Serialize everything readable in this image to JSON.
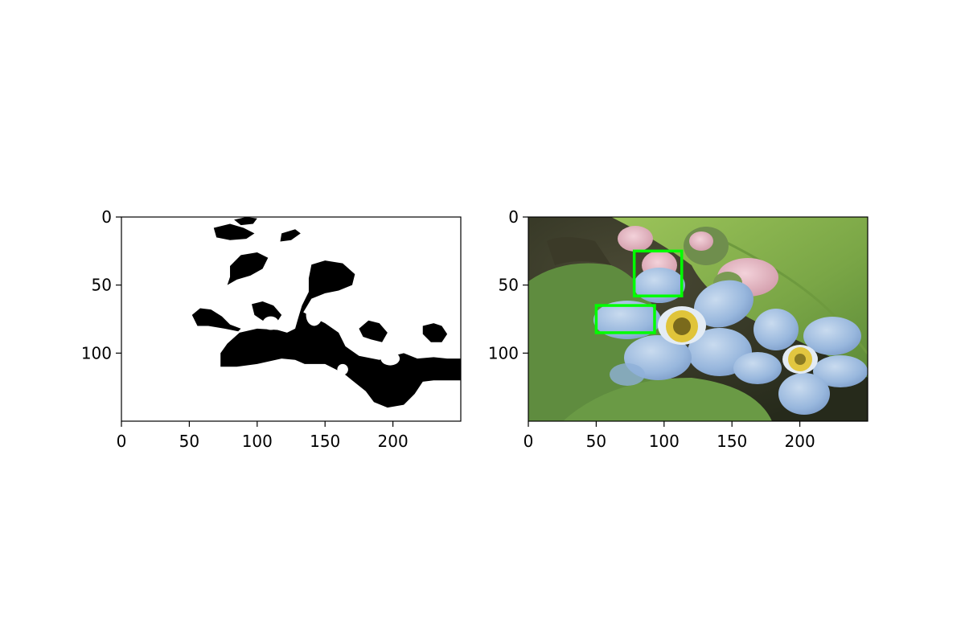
{
  "chart_data": [
    {
      "type": "heatmap",
      "panel": "binary-mask",
      "title": "",
      "xlabel": "",
      "ylabel": "",
      "image_width": 250,
      "image_height": 150,
      "xlim": [
        0,
        250
      ],
      "ylim": [
        150,
        0
      ],
      "xticks": [
        0,
        50,
        100,
        150,
        200
      ],
      "yticks": [
        0,
        50,
        100
      ],
      "colors": {
        "foreground": "#000000",
        "background": "#ffffff"
      },
      "grid": false,
      "legend": "none",
      "regions": [
        {
          "name": "blob-top-left",
          "points": [
            [
              68,
              8
            ],
            [
              80,
              5
            ],
            [
              90,
              8
            ],
            [
              98,
              12
            ],
            [
              92,
              16
            ],
            [
              80,
              17
            ],
            [
              70,
              15
            ]
          ]
        },
        {
          "name": "blob-top-small",
          "points": [
            [
              83,
              2
            ],
            [
              92,
              0
            ],
            [
              100,
              1
            ],
            [
              97,
              5
            ],
            [
              88,
              6
            ]
          ]
        },
        {
          "name": "blob-top-mid",
          "points": [
            [
              118,
              12
            ],
            [
              128,
              9
            ],
            [
              132,
              12
            ],
            [
              125,
              17
            ],
            [
              117,
              18
            ]
          ]
        },
        {
          "name": "blob-left-upper",
          "points": [
            [
              80,
              36
            ],
            [
              88,
              28
            ],
            [
              100,
              26
            ],
            [
              108,
              30
            ],
            [
              104,
              38
            ],
            [
              95,
              43
            ],
            [
              85,
              46
            ],
            [
              78,
              50
            ],
            [
              80,
              44
            ]
          ]
        },
        {
          "name": "blob-left-mid",
          "points": [
            [
              52,
              72
            ],
            [
              58,
              67
            ],
            [
              66,
              68
            ],
            [
              74,
              73
            ],
            [
              80,
              79
            ],
            [
              88,
              82
            ],
            [
              86,
              84
            ],
            [
              76,
              82
            ],
            [
              64,
              80
            ],
            [
              56,
              80
            ]
          ]
        },
        {
          "name": "blob-main",
          "points": [
            [
              140,
              35
            ],
            [
              150,
              32
            ],
            [
              163,
              34
            ],
            [
              172,
              42
            ],
            [
              170,
              50
            ],
            [
              160,
              54
            ],
            [
              150,
              56
            ],
            [
              140,
              60
            ],
            [
              134,
              70
            ],
            [
              150,
              78
            ],
            [
              160,
              85
            ],
            [
              165,
              95
            ],
            [
              175,
              102
            ],
            [
              190,
              105
            ],
            [
              200,
              102
            ],
            [
              208,
              100
            ],
            [
              218,
              104
            ],
            [
              230,
              103
            ],
            [
              240,
              104
            ],
            [
              250,
              104
            ],
            [
              250,
              120
            ],
            [
              230,
              120
            ],
            [
              222,
              121
            ],
            [
              216,
              130
            ],
            [
              208,
              138
            ],
            [
              196,
              140
            ],
            [
              186,
              136
            ],
            [
              180,
              128
            ],
            [
              170,
              120
            ],
            [
              165,
              116
            ],
            [
              158,
              112
            ],
            [
              150,
              108
            ],
            [
              135,
              108
            ],
            [
              128,
              105
            ],
            [
              118,
              104
            ],
            [
              100,
              108
            ],
            [
              85,
              110
            ],
            [
              73,
              110
            ],
            [
              73,
              100
            ],
            [
              78,
              93
            ],
            [
              87,
              85
            ],
            [
              100,
              82
            ],
            [
              115,
              83
            ],
            [
              122,
              85
            ],
            [
              128,
              82
            ],
            [
              130,
              75
            ],
            [
              133,
              65
            ],
            [
              138,
              55
            ],
            [
              138,
              45
            ]
          ]
        },
        {
          "name": "blob-left-bridge",
          "points": [
            [
              96,
              64
            ],
            [
              104,
              62
            ],
            [
              112,
              65
            ],
            [
              118,
              72
            ],
            [
              114,
              78
            ],
            [
              104,
              76
            ],
            [
              98,
              72
            ]
          ]
        },
        {
          "name": "blob-right-hook",
          "points": [
            [
              222,
              80
            ],
            [
              230,
              78
            ],
            [
              236,
              80
            ],
            [
              240,
              86
            ],
            [
              236,
              92
            ],
            [
              228,
              92
            ],
            [
              222,
              86
            ]
          ]
        },
        {
          "name": "blob-right-bump",
          "points": [
            [
              175,
              82
            ],
            [
              182,
              76
            ],
            [
              190,
              78
            ],
            [
              196,
              85
            ],
            [
              192,
              92
            ],
            [
              184,
              90
            ],
            [
              178,
              88
            ]
          ]
        }
      ],
      "holes": [
        {
          "name": "hole-left",
          "cx": 110,
          "cy": 78,
          "rx": 6,
          "ry": 5
        },
        {
          "name": "hole-center",
          "cx": 142,
          "cy": 72,
          "rx": 6,
          "ry": 8
        },
        {
          "name": "hole-right",
          "cx": 198,
          "cy": 104,
          "rx": 7,
          "ry": 5
        },
        {
          "name": "hole-lower",
          "cx": 163,
          "cy": 112,
          "rx": 4,
          "ry": 4
        }
      ]
    },
    {
      "type": "heatmap",
      "panel": "flower-photo",
      "title": "",
      "xlabel": "",
      "ylabel": "",
      "image_width": 250,
      "image_height": 150,
      "xlim": [
        0,
        250
      ],
      "ylim": [
        150,
        0
      ],
      "xticks": [
        0,
        50,
        100,
        150,
        200
      ],
      "yticks": [
        0,
        50,
        100
      ],
      "grid": false,
      "legend": "none",
      "colors": {
        "background-dark": "#2f3a22",
        "leaf-green": "#7da84a",
        "leaf-dark": "#4e7a35",
        "petal-blue": "#9fbde0",
        "petal-light": "#dfe8f2",
        "flower-center": "#e0c43a",
        "bud-pink": "#e8b8c4",
        "box-green": "#00ff00"
      },
      "boxes": [
        {
          "name": "detection-box-1",
          "x0": 78,
          "y0": 25,
          "x1": 113,
          "y1": 58
        },
        {
          "name": "detection-box-2",
          "x0": 50,
          "y0": 65,
          "x1": 93,
          "y1": 85
        }
      ]
    }
  ]
}
